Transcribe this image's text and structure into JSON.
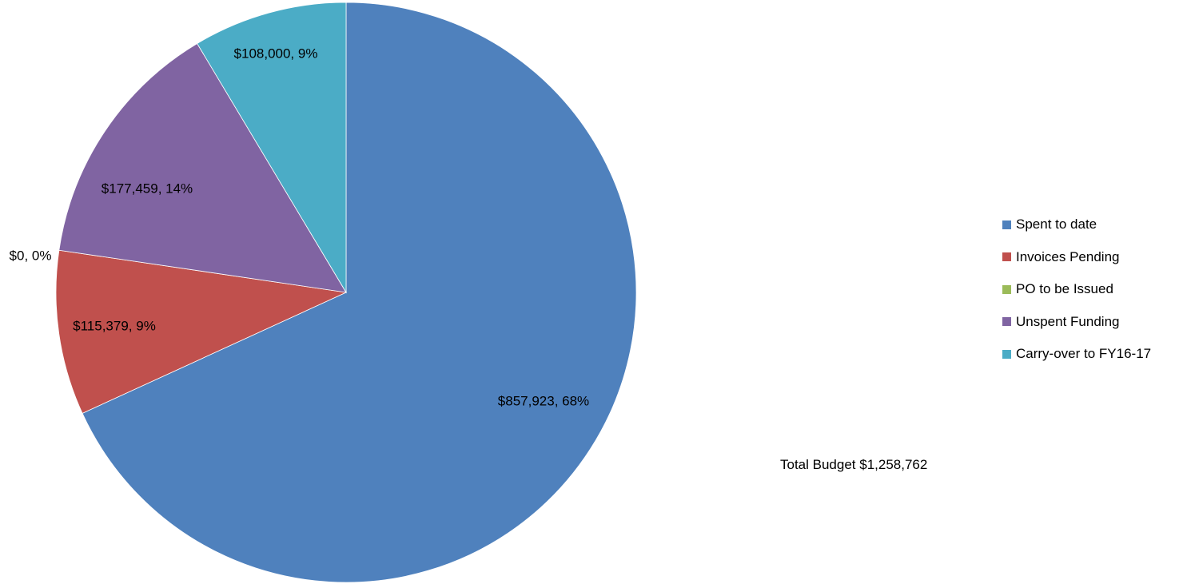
{
  "chart_data": {
    "type": "pie",
    "title": "",
    "slices": [
      {
        "name": "Spent to date",
        "value": 857923,
        "percent": 68,
        "label": "$857,923, 68%",
        "color": "#4F81BD"
      },
      {
        "name": "Invoices Pending",
        "value": 115379,
        "percent": 9,
        "label": "$115,379, 9%",
        "color": "#C0504D"
      },
      {
        "name": "PO to be Issued",
        "value": 0,
        "percent": 0,
        "label": "$0, 0%",
        "color": "#9BBB59"
      },
      {
        "name": "Unspent Funding",
        "value": 177459,
        "percent": 14,
        "label": "$177,459, 14%",
        "color": "#8064A2"
      },
      {
        "name": "Carry-over to FY16-17",
        "value": 108000,
        "percent": 9,
        "label": "$108,000, 9%",
        "color": "#4BACC6"
      }
    ],
    "legend_position": "right",
    "start_angle": "12 o'clock",
    "direction": "clockwise"
  },
  "annotation": {
    "text": "Total Budget  $1,258,762"
  }
}
